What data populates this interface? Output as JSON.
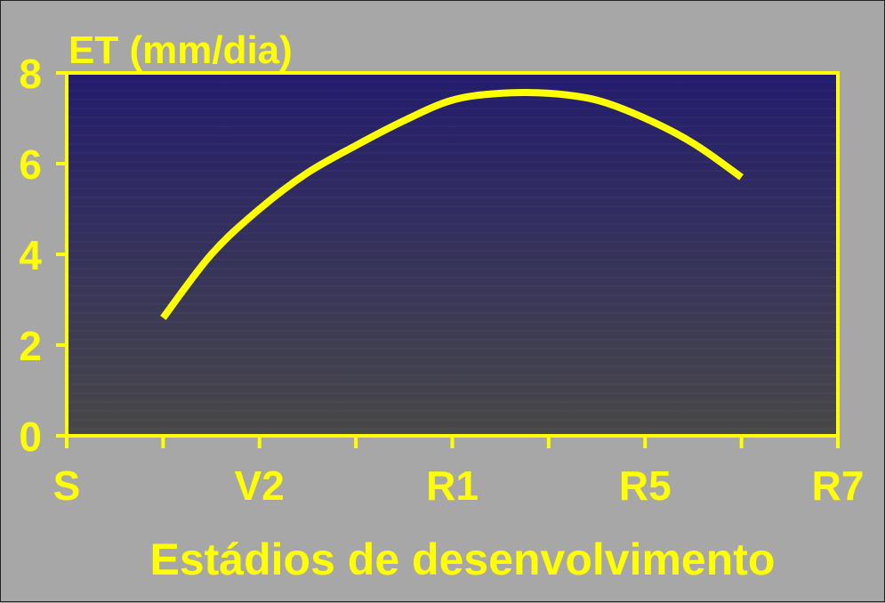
{
  "chart_data": {
    "type": "line",
    "title": "",
    "ylabel": "ET (mm/dia)",
    "xlabel": "Estádios de desenvolvimento",
    "ylim": [
      0,
      8
    ],
    "yticks": [
      "0",
      "2",
      "4",
      "6",
      "8"
    ],
    "x_tick_labels": [
      "S",
      "",
      "V2",
      "",
      "R1",
      "",
      "R5",
      "",
      "R7"
    ],
    "grid": false,
    "colors": {
      "line": "#ffff00",
      "axis": "#ffff00",
      "text": "#ffff00",
      "background": "#a7a7a7",
      "plot_top": "#231c6e",
      "plot_bottom": "#484848"
    },
    "series": [
      {
        "x": [
          1,
          1.5,
          2,
          2.5,
          3,
          3.5,
          4,
          4.5,
          5,
          5.5,
          6,
          6.5,
          7
        ],
        "values": [
          2.6,
          4.0,
          5.0,
          5.8,
          6.4,
          6.95,
          7.4,
          7.55,
          7.55,
          7.4,
          7.0,
          6.45,
          5.7
        ]
      }
    ]
  }
}
